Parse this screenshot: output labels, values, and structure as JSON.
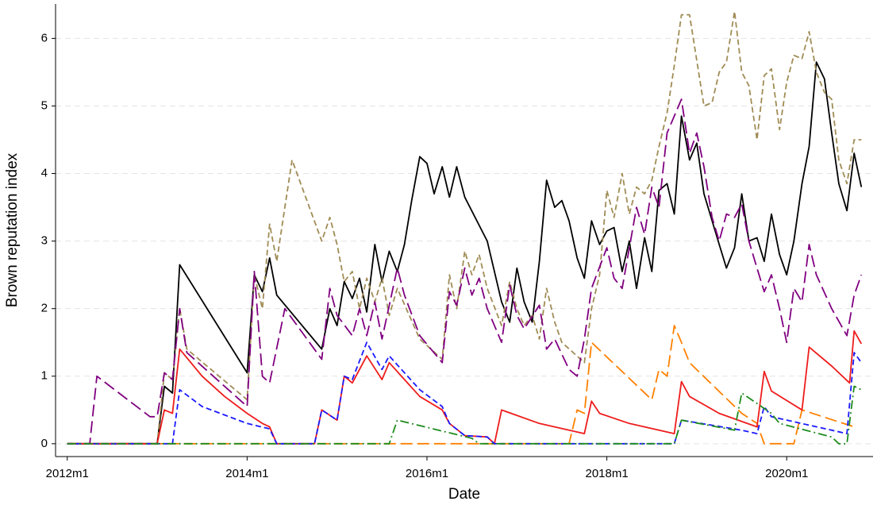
{
  "chart_data": {
    "type": "line",
    "x_label": "Date",
    "y_label": "Brown reputation index",
    "xlim": [
      2011.87,
      2020.96
    ],
    "ylim": [
      -0.19,
      6.51
    ],
    "xticks": [
      {
        "value": 2012,
        "label": "2012m1"
      },
      {
        "value": 2014,
        "label": "2014m1"
      },
      {
        "value": 2016,
        "label": "2016m1"
      },
      {
        "value": 2018,
        "label": "2018m1"
      },
      {
        "value": 2020,
        "label": "2020m1"
      }
    ],
    "yticks": [
      0,
      1,
      2,
      3,
      4,
      5,
      6
    ],
    "grid": true,
    "series": [
      {
        "color": "#000000",
        "dash": "solid",
        "x": [
          2012,
          2013,
          2013.08,
          2013.17,
          2013.25,
          2014,
          2014.08,
          2014.17,
          2014.25,
          2014.33,
          2014.83,
          2014.92,
          2015,
          2015.08,
          2015.17,
          2015.25,
          2015.33,
          2015.42,
          2015.5,
          2015.58,
          2015.67,
          2015.75,
          2015.83,
          2015.92,
          2016,
          2016.08,
          2016.17,
          2016.25,
          2016.33,
          2016.42,
          2016.67,
          2016.83,
          2016.92,
          2017,
          2017.08,
          2017.17,
          2017.25,
          2017.33,
          2017.42,
          2017.5,
          2017.58,
          2017.67,
          2017.75,
          2017.83,
          2017.92,
          2018,
          2018.08,
          2018.17,
          2018.25,
          2018.33,
          2018.42,
          2018.5,
          2018.58,
          2018.67,
          2018.75,
          2018.83,
          2018.92,
          2019,
          2019.08,
          2019.25,
          2019.33,
          2019.42,
          2019.5,
          2019.58,
          2019.67,
          2019.75,
          2019.83,
          2019.92,
          2020,
          2020.08,
          2020.17,
          2020.25,
          2020.33,
          2020.42,
          2020.5,
          2020.58,
          2020.67,
          2020.75,
          2020.83
        ],
        "values": [
          0,
          0,
          0.85,
          0.75,
          2.65,
          1.05,
          2.5,
          2.25,
          2.75,
          2.2,
          1.4,
          2.0,
          1.75,
          2.4,
          2.15,
          2.45,
          1.95,
          2.95,
          2.4,
          2.85,
          2.55,
          2.95,
          3.6,
          4.25,
          4.15,
          3.7,
          4.1,
          3.65,
          4.1,
          3.65,
          3.0,
          2.1,
          1.8,
          2.6,
          2.1,
          1.8,
          2.7,
          3.9,
          3.5,
          3.6,
          3.3,
          2.75,
          2.45,
          3.3,
          2.95,
          3.15,
          3.2,
          2.55,
          3.0,
          2.3,
          3.05,
          2.55,
          3.75,
          3.85,
          3.4,
          4.85,
          4.2,
          4.45,
          3.7,
          2.95,
          2.6,
          2.9,
          3.7,
          3.0,
          3.05,
          2.7,
          3.4,
          2.8,
          2.5,
          3.0,
          3.85,
          4.4,
          5.65,
          5.4,
          4.6,
          3.85,
          3.45,
          4.3,
          3.8
        ]
      },
      {
        "color": "#a08c55",
        "dash": "dashed",
        "x": [
          2012,
          2013,
          2013.08,
          2013.17,
          2013.25,
          2013.33,
          2014,
          2014.08,
          2014.17,
          2014.25,
          2014.33,
          2014.42,
          2014.5,
          2014.83,
          2014.92,
          2015,
          2015.08,
          2015.17,
          2015.25,
          2015.33,
          2015.42,
          2015.5,
          2015.58,
          2015.67,
          2015.92,
          2016.17,
          2016.25,
          2016.33,
          2016.42,
          2016.5,
          2016.58,
          2016.67,
          2016.83,
          2016.92,
          2017,
          2017.08,
          2017.17,
          2017.25,
          2017.33,
          2017.42,
          2017.5,
          2017.75,
          2017.83,
          2017.92,
          2018,
          2018.08,
          2018.17,
          2018.25,
          2018.33,
          2018.42,
          2018.5,
          2018.58,
          2018.67,
          2018.75,
          2018.83,
          2018.92,
          2019.08,
          2019.17,
          2019.25,
          2019.33,
          2019.42,
          2019.5,
          2019.58,
          2019.67,
          2019.75,
          2019.83,
          2019.92,
          2020,
          2020.08,
          2020.17,
          2020.25,
          2020.33,
          2020.42,
          2020.5,
          2020.58,
          2020.67,
          2020.75,
          2020.83
        ],
        "values": [
          0,
          0,
          1.05,
          0.95,
          2.0,
          1.4,
          0.65,
          2.5,
          2.0,
          3.25,
          2.7,
          3.5,
          4.2,
          3.0,
          3.35,
          2.95,
          2.4,
          2.55,
          2.0,
          2.45,
          2.1,
          2.45,
          1.9,
          2.3,
          1.55,
          1.25,
          2.5,
          2.0,
          2.85,
          2.5,
          2.8,
          2.3,
          1.75,
          2.4,
          2.0,
          1.75,
          1.9,
          1.55,
          2.3,
          1.8,
          1.5,
          1.2,
          2.0,
          2.5,
          3.75,
          3.35,
          4.0,
          3.4,
          3.8,
          3.7,
          3.9,
          4.4,
          4.9,
          5.6,
          6.35,
          6.35,
          5.0,
          5.05,
          5.5,
          5.65,
          6.4,
          5.5,
          5.3,
          4.5,
          5.45,
          5.55,
          4.65,
          5.35,
          5.75,
          5.7,
          6.1,
          5.5,
          5.2,
          5.1,
          4.2,
          3.85,
          4.5,
          4.5
        ]
      },
      {
        "color": "#800080",
        "dash": "longdash",
        "x": [
          2012,
          2012.25,
          2012.33,
          2012.92,
          2013,
          2013.08,
          2013.17,
          2013.25,
          2013.33,
          2014,
          2014.08,
          2014.17,
          2014.25,
          2014.42,
          2014.83,
          2014.92,
          2015,
          2015.17,
          2015.25,
          2015.33,
          2015.42,
          2015.5,
          2015.67,
          2015.75,
          2015.92,
          2016.17,
          2016.25,
          2016.33,
          2016.42,
          2016.5,
          2016.58,
          2016.67,
          2016.83,
          2016.92,
          2017,
          2017.08,
          2017.25,
          2017.33,
          2017.42,
          2017.58,
          2017.67,
          2017.75,
          2017.83,
          2018,
          2018.08,
          2018.17,
          2018.33,
          2018.42,
          2018.5,
          2018.58,
          2018.67,
          2018.83,
          2018.92,
          2019,
          2019.08,
          2019.17,
          2019.25,
          2019.33,
          2019.42,
          2019.5,
          2019.58,
          2019.67,
          2019.75,
          2019.83,
          2019.92,
          2020,
          2020.08,
          2020.17,
          2020.25,
          2020.33,
          2020.5,
          2020.67,
          2020.75,
          2020.83
        ],
        "values": [
          0,
          0,
          1.0,
          0.4,
          0.4,
          1.05,
          0.95,
          2.0,
          1.35,
          0.55,
          2.55,
          1.0,
          0.9,
          2.0,
          1.25,
          2.3,
          1.9,
          1.6,
          2.0,
          1.6,
          2.1,
          1.55,
          2.6,
          2.2,
          1.6,
          1.2,
          2.25,
          2.05,
          2.6,
          2.2,
          2.45,
          2.0,
          1.5,
          2.35,
          1.9,
          1.7,
          2.05,
          1.4,
          1.55,
          1.1,
          1.0,
          1.55,
          2.3,
          2.9,
          2.45,
          2.3,
          3.5,
          3.1,
          3.8,
          3.5,
          4.6,
          5.1,
          4.3,
          4.6,
          4.1,
          3.35,
          3.0,
          3.4,
          3.35,
          3.55,
          3.0,
          2.6,
          2.25,
          2.5,
          2.0,
          1.5,
          2.3,
          2.1,
          2.95,
          2.5,
          2.0,
          1.6,
          2.2,
          2.5
        ]
      },
      {
        "color": "#ff8000",
        "dash": "longdash",
        "x": [
          2012,
          2017.58,
          2017.67,
          2017.75,
          2017.83,
          2018.5,
          2018.58,
          2018.67,
          2018.75,
          2018.83,
          2018.92,
          2019.5,
          2019.67,
          2019.75,
          2020.08,
          2020.17,
          2020.75
        ],
        "values": [
          0,
          0,
          0.5,
          0.45,
          1.5,
          0.65,
          1.1,
          1.0,
          1.75,
          1.5,
          1.2,
          0.45,
          0.3,
          0,
          0,
          0.5,
          0.25
        ]
      },
      {
        "color": "#ee1c1c",
        "dash": "solid",
        "x": [
          2012,
          2013,
          2013.08,
          2013.17,
          2013.25,
          2013.5,
          2013.75,
          2014,
          2014.17,
          2014.25,
          2014.33,
          2014.75,
          2014.83,
          2015,
          2015.08,
          2015.17,
          2015.33,
          2015.5,
          2015.58,
          2015.75,
          2015.92,
          2016.17,
          2016.25,
          2016.42,
          2016.67,
          2016.75,
          2016.83,
          2017.25,
          2017.75,
          2017.83,
          2017.92,
          2018.25,
          2018.75,
          2018.83,
          2018.92,
          2019.25,
          2019.67,
          2019.75,
          2019.83,
          2020.17,
          2020.25,
          2020.5,
          2020.7,
          2020.75,
          2020.83
        ],
        "values": [
          0,
          0,
          0.5,
          0.45,
          1.4,
          1.0,
          0.7,
          0.45,
          0.3,
          0.25,
          0,
          0,
          0.5,
          0.35,
          1.0,
          0.9,
          1.3,
          0.95,
          1.2,
          0.95,
          0.7,
          0.5,
          0.3,
          0.12,
          0.1,
          0,
          0.5,
          0.3,
          0.15,
          0.63,
          0.45,
          0.3,
          0.15,
          0.92,
          0.7,
          0.45,
          0.25,
          1.07,
          0.78,
          0.5,
          1.43,
          1.15,
          0.9,
          1.67,
          1.48
        ]
      },
      {
        "color": "#1a1aff",
        "dash": "dashed",
        "x": [
          2012,
          2013.17,
          2013.25,
          2013.5,
          2014,
          2014.25,
          2014.33,
          2014.75,
          2014.83,
          2015,
          2015.08,
          2015.17,
          2015.33,
          2015.5,
          2015.58,
          2015.92,
          2016.17,
          2016.25,
          2016.42,
          2016.67,
          2016.75,
          2018.75,
          2018.83,
          2019.5,
          2019.67,
          2019.75,
          2019.83,
          2020.67,
          2020.75,
          2020.83
        ],
        "values": [
          0,
          0,
          0.8,
          0.55,
          0.3,
          0.22,
          0,
          0,
          0.5,
          0.35,
          1.0,
          0.95,
          1.5,
          1.1,
          1.3,
          0.8,
          0.55,
          0.3,
          0.12,
          0.1,
          0,
          0,
          0.35,
          0.2,
          0.15,
          0.55,
          0.4,
          0.15,
          1.35,
          1.2
        ]
      },
      {
        "color": "#1e8c1e",
        "dash": "dashdot",
        "x": [
          2012,
          2015.58,
          2015.67,
          2016.5,
          2016.58,
          2018.75,
          2018.83,
          2019.42,
          2019.5,
          2019.83,
          2019.92,
          2020.5,
          2020.58,
          2020.67,
          2020.75,
          2020.83
        ],
        "values": [
          0,
          0,
          0.35,
          0.08,
          0,
          0,
          0.35,
          0.2,
          0.75,
          0.45,
          0.3,
          0.1,
          0,
          0,
          0.85,
          0.8
        ]
      }
    ]
  }
}
